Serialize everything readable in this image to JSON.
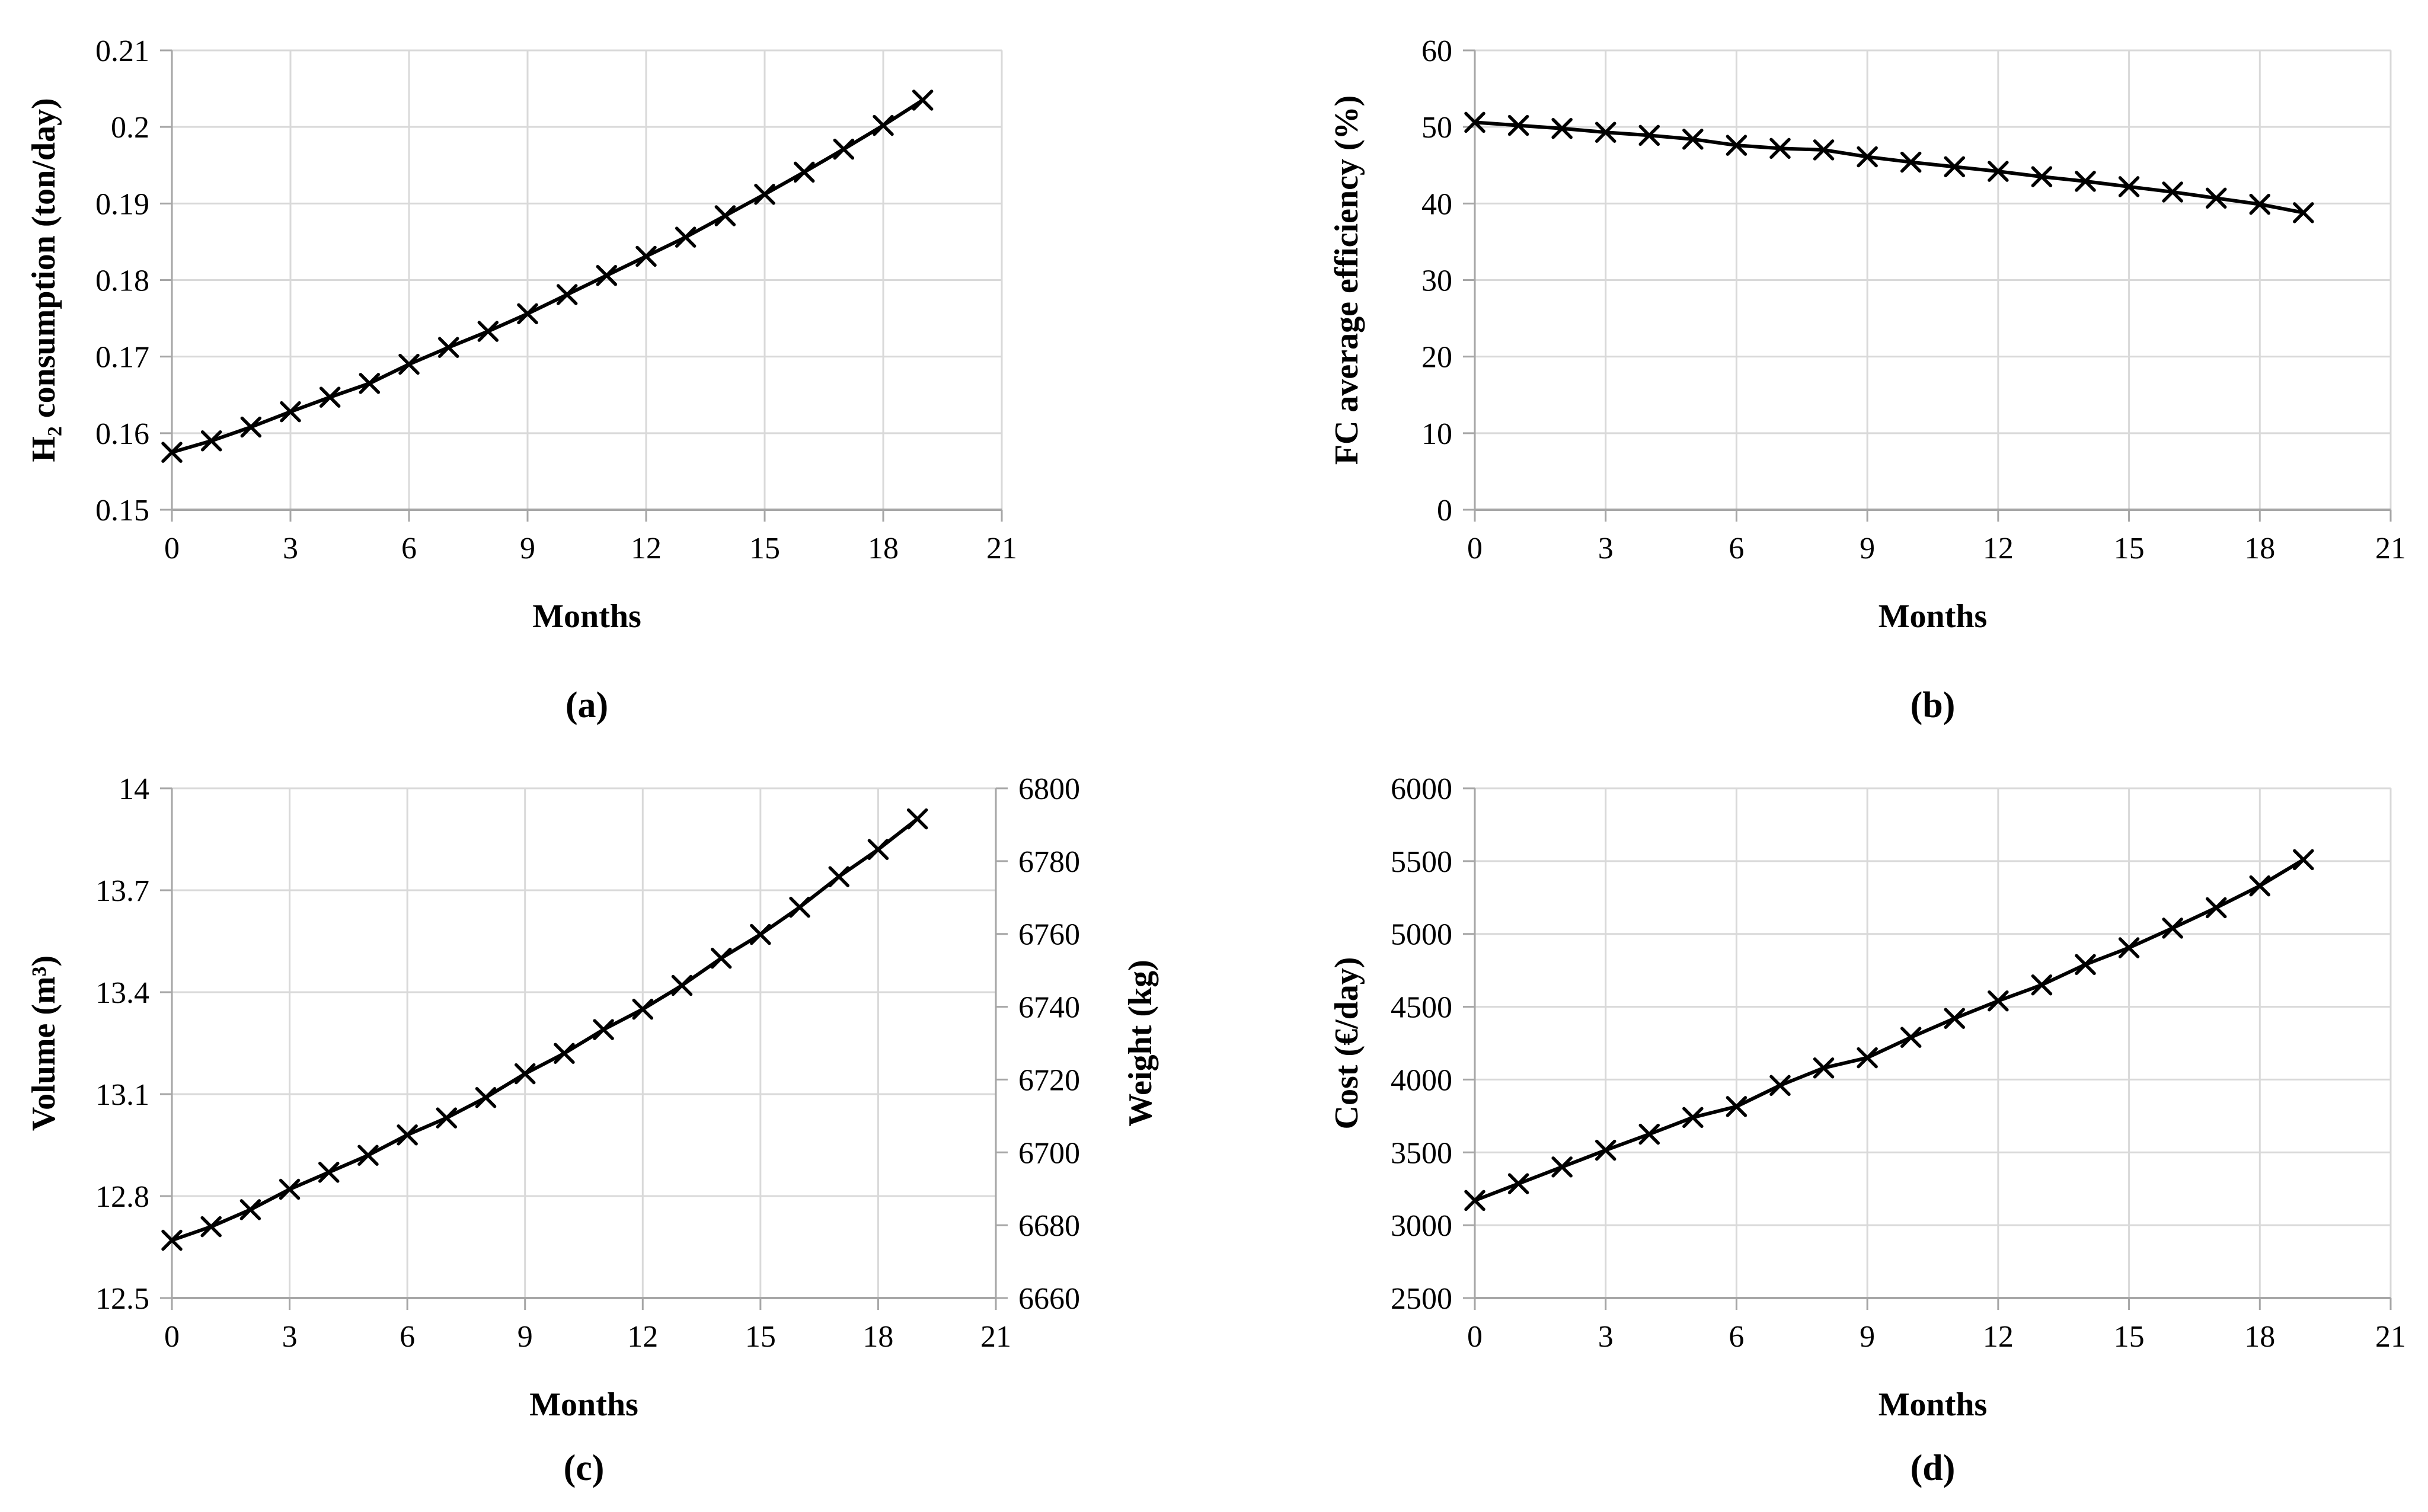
{
  "colors": {
    "line": "#000000",
    "grid": "#d9d9d9",
    "axis": "#a6a6a6",
    "text": "#000000",
    "background": "#ffffff"
  },
  "chart_data": [
    {
      "type": "line",
      "panel_label": "(a)",
      "xlabel": "Months",
      "ylabel": "H₂ consumption (ton/day)",
      "x": [
        0,
        1,
        2,
        3,
        4,
        5,
        6,
        7,
        8,
        9,
        10,
        11,
        12,
        13,
        14,
        15,
        16,
        17,
        18,
        19
      ],
      "series": [
        {
          "name": "H2 consumption",
          "axis": "left",
          "values": [
            0.1575,
            0.159,
            0.1608,
            0.1628,
            0.1647,
            0.1665,
            0.169,
            0.1712,
            0.1733,
            0.1756,
            0.1781,
            0.1806,
            0.1831,
            0.1856,
            0.1884,
            0.1912,
            0.1941,
            0.1971,
            0.2002,
            0.2035
          ]
        }
      ],
      "xlim": [
        0,
        21
      ],
      "ylim": [
        0.15,
        0.21
      ],
      "x_ticks": [
        0,
        3,
        6,
        9,
        12,
        15,
        18,
        21
      ],
      "y_ticks": [
        0.15,
        0.16,
        0.17,
        0.18,
        0.19,
        0.2,
        0.21
      ],
      "y_tick_labels": [
        "0.15",
        "0.16",
        "0.17",
        "0.18",
        "0.19",
        "0.2",
        "0.21"
      ],
      "marker": "x",
      "grid": true,
      "legend": "none"
    },
    {
      "type": "line",
      "panel_label": "(b)",
      "xlabel": "Months",
      "ylabel": "FC average efficiency (%)",
      "x": [
        0,
        1,
        2,
        3,
        4,
        5,
        6,
        7,
        8,
        9,
        10,
        11,
        12,
        13,
        14,
        15,
        16,
        17,
        18,
        19
      ],
      "series": [
        {
          "name": "FC average efficiency",
          "axis": "left",
          "values": [
            50.6,
            50.2,
            49.8,
            49.3,
            48.9,
            48.4,
            47.6,
            47.2,
            47.0,
            46.1,
            45.4,
            44.8,
            44.2,
            43.5,
            42.9,
            42.2,
            41.5,
            40.7,
            39.9,
            38.8
          ]
        }
      ],
      "xlim": [
        0,
        21
      ],
      "ylim": [
        0,
        60
      ],
      "x_ticks": [
        0,
        3,
        6,
        9,
        12,
        15,
        18,
        21
      ],
      "y_ticks": [
        0,
        10,
        20,
        30,
        40,
        50,
        60
      ],
      "y_tick_labels": [
        "0",
        "10",
        "20",
        "30",
        "40",
        "50",
        "60"
      ],
      "marker": "x",
      "grid": true,
      "legend": "none"
    },
    {
      "type": "line",
      "panel_label": "(c)",
      "xlabel": "Months",
      "ylabel": "Volume (m³)",
      "y2label": "Weight (kg)",
      "x": [
        0,
        1,
        2,
        3,
        4,
        5,
        6,
        7,
        8,
        9,
        10,
        11,
        12,
        13,
        14,
        15,
        16,
        17,
        18,
        19
      ],
      "series": [
        {
          "name": "Volume",
          "axis": "left",
          "values": [
            12.67,
            12.71,
            12.76,
            12.82,
            12.87,
            12.92,
            12.98,
            13.03,
            13.09,
            13.16,
            13.22,
            13.29,
            13.35,
            13.42,
            13.5,
            13.57,
            13.65,
            13.74,
            13.82,
            13.91
          ]
        },
        {
          "name": "Weight",
          "axis": "right",
          "values": [
            6676,
            6680,
            6684,
            6690,
            6695,
            6699,
            6705,
            6710,
            6715,
            6722,
            6727,
            6734,
            6739,
            6746,
            6753,
            6760,
            6767,
            6776,
            6783,
            6792
          ]
        }
      ],
      "xlim": [
        0,
        21
      ],
      "ylim": [
        12.5,
        14
      ],
      "y2lim": [
        6660,
        6800
      ],
      "x_ticks": [
        0,
        3,
        6,
        9,
        12,
        15,
        18,
        21
      ],
      "y_ticks": [
        12.5,
        12.8,
        13.1,
        13.4,
        13.7,
        14
      ],
      "y_tick_labels": [
        "12.5",
        "12.8",
        "13.1",
        "13.4",
        "13.7",
        "14"
      ],
      "y2_ticks": [
        6660,
        6680,
        6700,
        6720,
        6740,
        6760,
        6780,
        6800
      ],
      "y2_tick_labels": [
        "6660",
        "6680",
        "6700",
        "6720",
        "6740",
        "6760",
        "6780",
        "6800"
      ],
      "marker": "x",
      "grid": true,
      "legend": "none"
    },
    {
      "type": "line",
      "panel_label": "(d)",
      "xlabel": "Months",
      "ylabel": "Cost (€/day)",
      "x": [
        0,
        1,
        2,
        3,
        4,
        5,
        6,
        7,
        8,
        9,
        10,
        11,
        12,
        13,
        14,
        15,
        16,
        17,
        18,
        19
      ],
      "series": [
        {
          "name": "Cost",
          "axis": "left",
          "values": [
            3170,
            3285,
            3400,
            3515,
            3625,
            3740,
            3815,
            3960,
            4080,
            4150,
            4290,
            4420,
            4540,
            4650,
            4790,
            4905,
            5040,
            5180,
            5330,
            5510
          ]
        }
      ],
      "xlim": [
        0,
        21
      ],
      "ylim": [
        2500,
        6000
      ],
      "x_ticks": [
        0,
        3,
        6,
        9,
        12,
        15,
        18,
        21
      ],
      "y_ticks": [
        2500,
        3000,
        3500,
        4000,
        4500,
        5000,
        5500,
        6000
      ],
      "y_tick_labels": [
        "2500",
        "3000",
        "3500",
        "4000",
        "4500",
        "5000",
        "5500",
        "6000"
      ],
      "marker": "x",
      "grid": true,
      "legend": "none"
    }
  ]
}
